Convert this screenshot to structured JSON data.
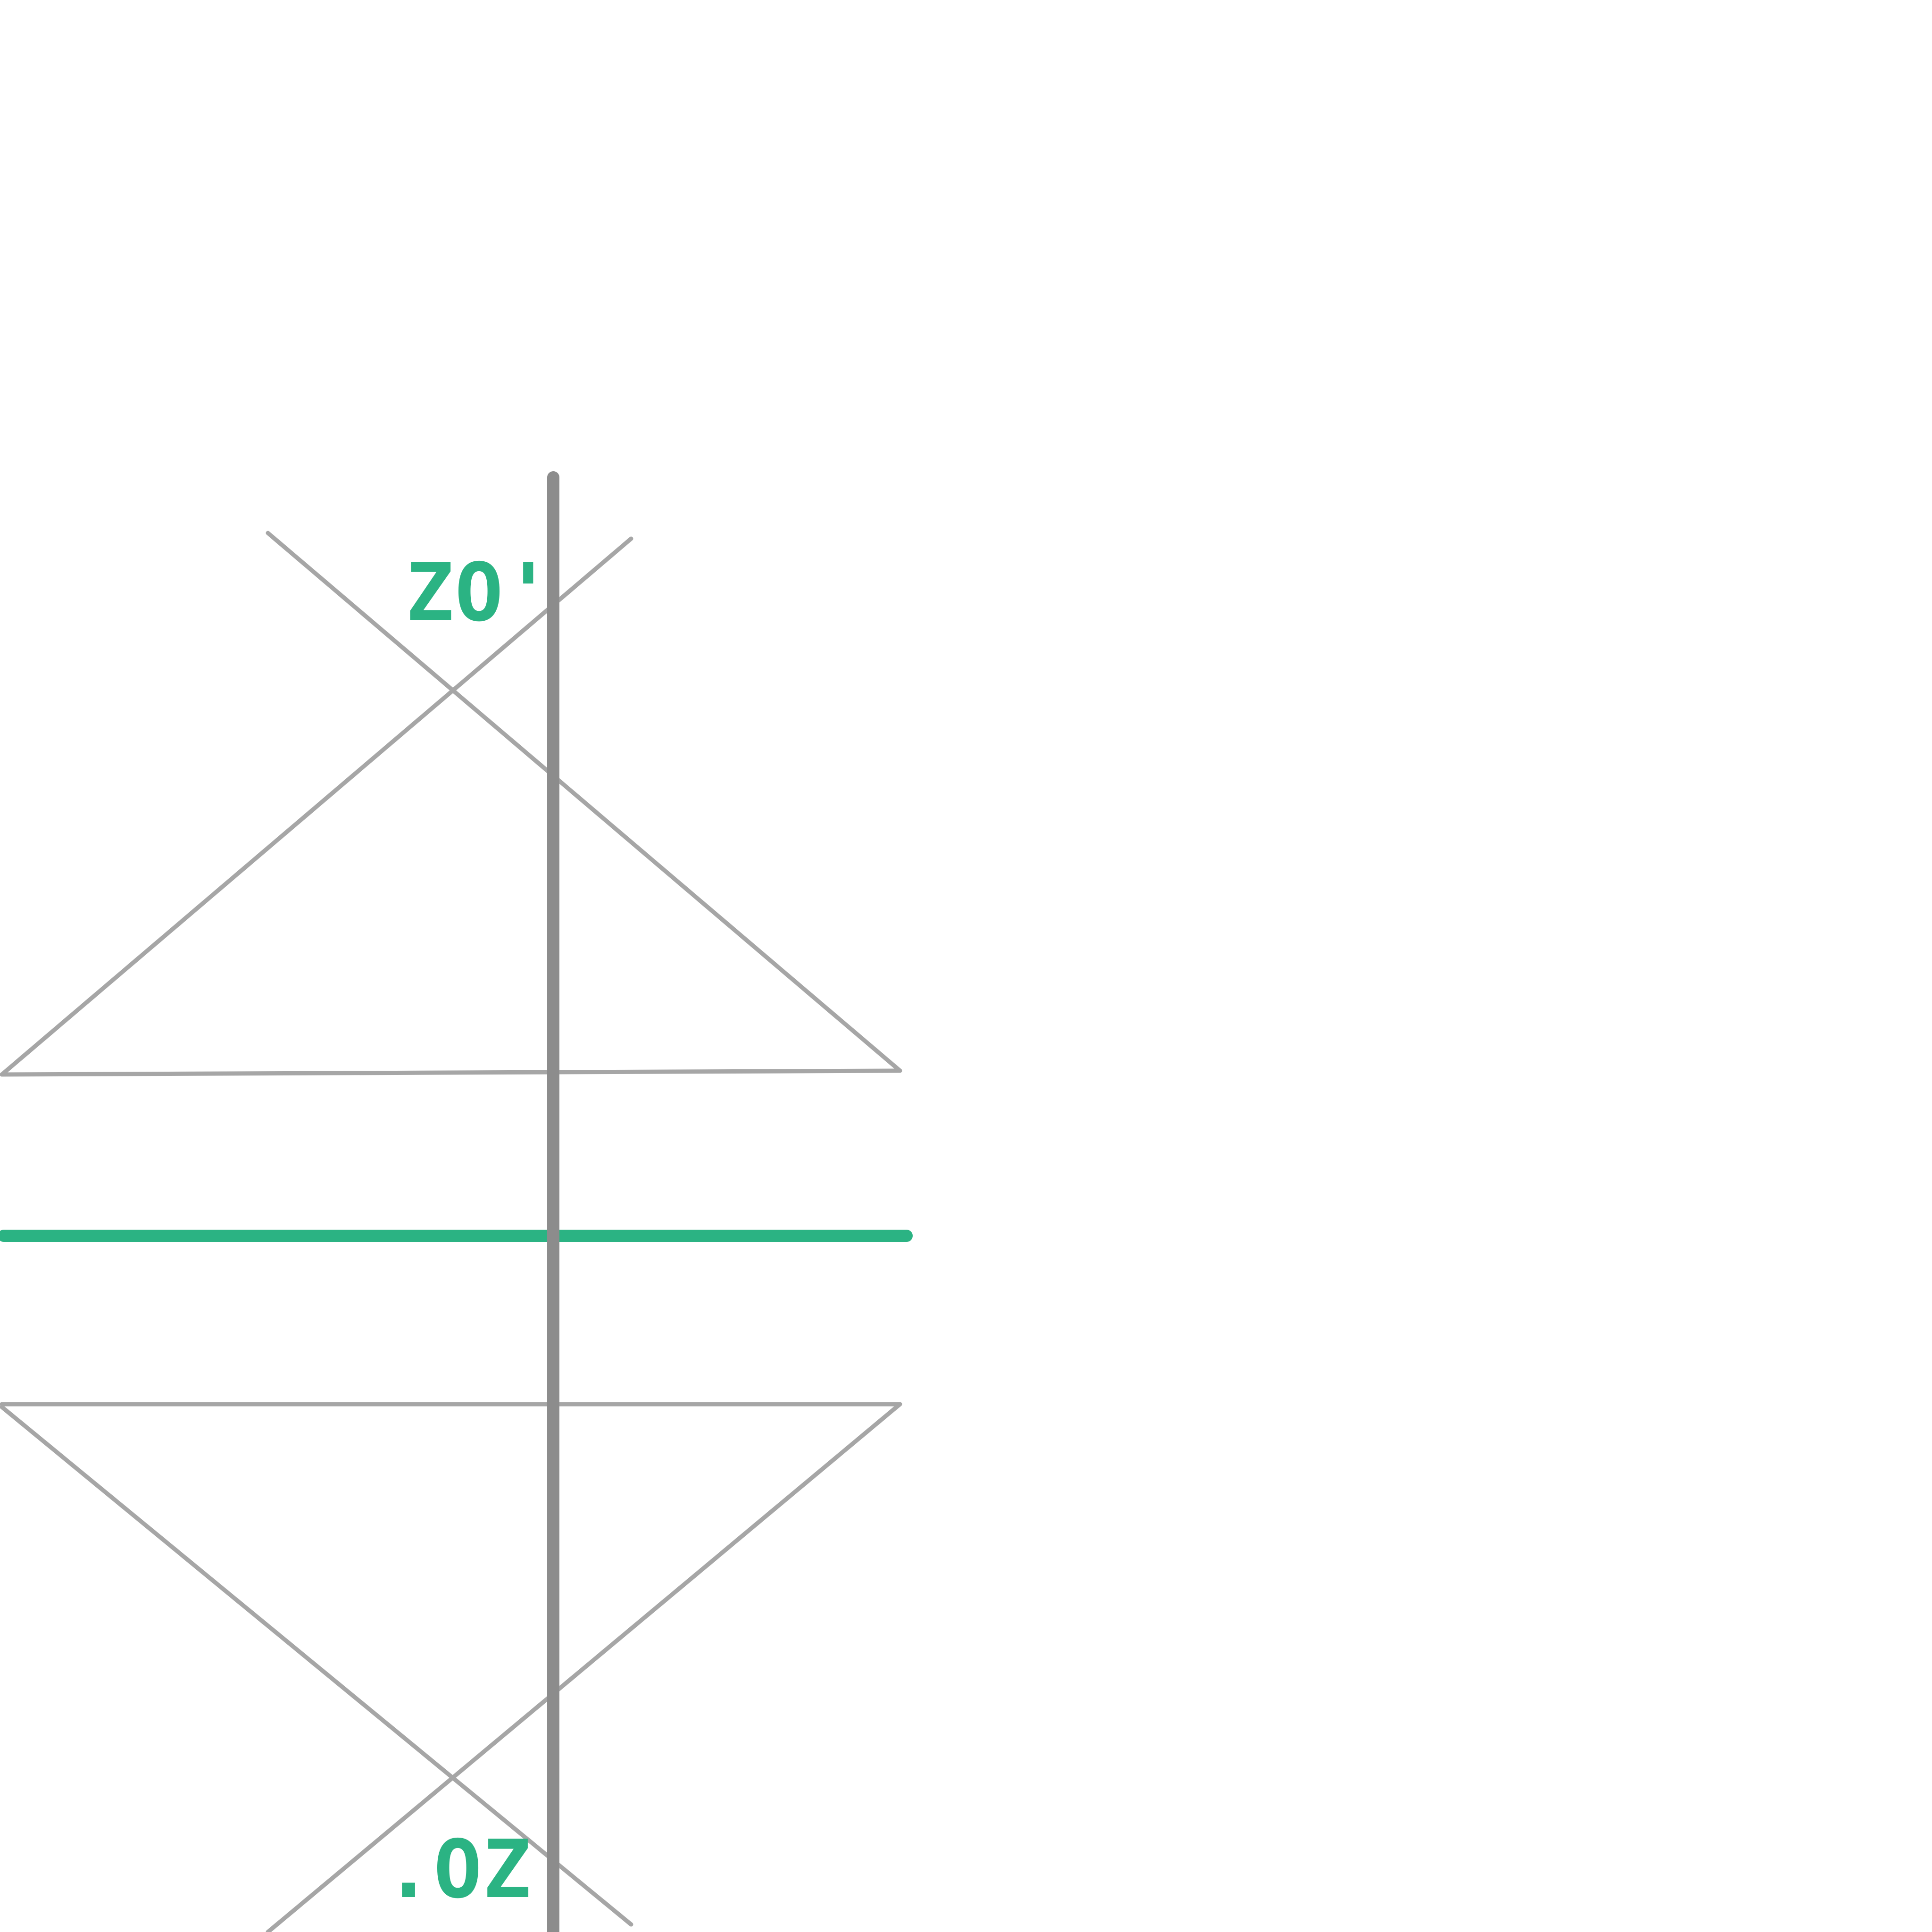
{
  "colors": {
    "background": "#ffffff",
    "accent": "#2bb383",
    "guide_line": "#a6a6a6",
    "axis_line": "#8c8c8c"
  },
  "labels": {
    "top": "ZO'",
    "bottom": ".OZ"
  }
}
